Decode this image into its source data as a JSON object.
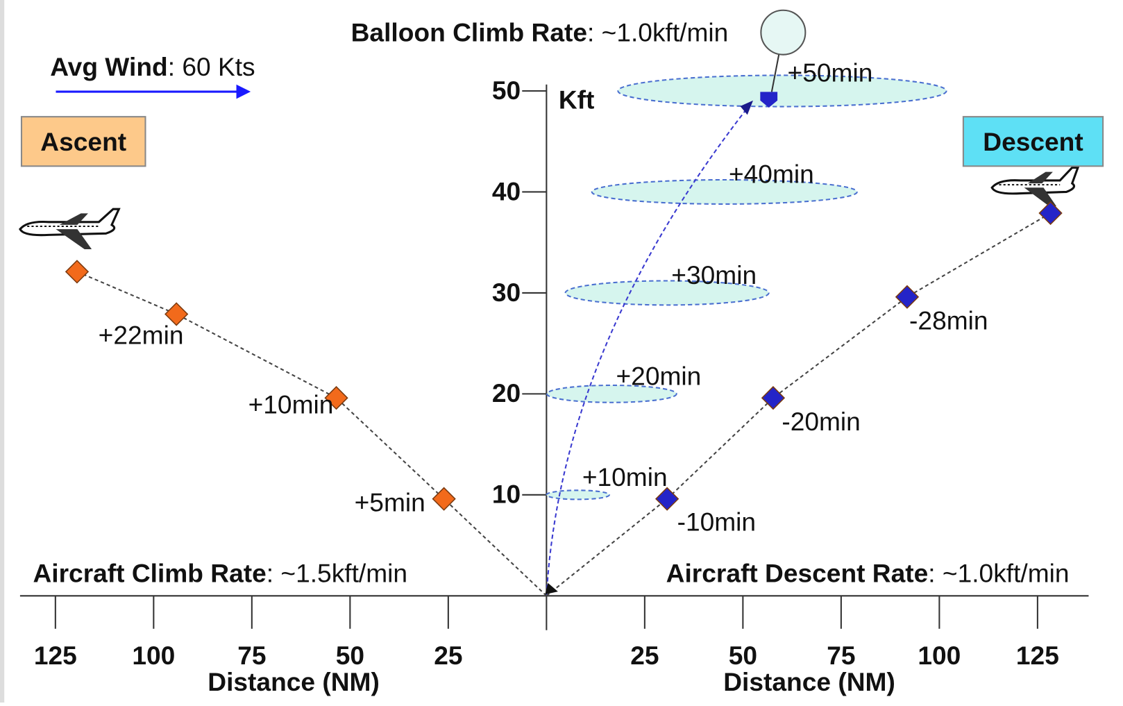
{
  "chart_data": {
    "type": "scatter",
    "title": {
      "bold": "Balloon Climb Rate",
      "text": ": ~1.0kft/min"
    },
    "wind": {
      "bold": "Avg Wind",
      "text": ": 60 Kts"
    },
    "climb_note": {
      "bold": "Aircraft Climb Rate",
      "text": ": ~1.5kft/min"
    },
    "descent_note": {
      "bold": "Aircraft Descent Rate",
      "text": ": ~1.0kft/min"
    },
    "y_label": "Kft",
    "x_labels": [
      "Distance (NM)",
      "Distance (NM)"
    ],
    "xlim": [
      -134,
      138
    ],
    "ylim": [
      0,
      55
    ],
    "xticks": [
      {
        "value": -125,
        "label": "125"
      },
      {
        "value": -100,
        "label": "100"
      },
      {
        "value": -75,
        "label": "75"
      },
      {
        "value": -50,
        "label": "50"
      },
      {
        "value": -25,
        "label": "25"
      },
      25,
      50,
      75,
      100,
      125
    ],
    "yticks": [
      10,
      20,
      30,
      40,
      50
    ],
    "series": [
      {
        "name": "Ascent",
        "color": "#f26a1b",
        "box_color": "#fdc98a",
        "x": [
          -119.5,
          -94.2,
          -53.5,
          -26.1
        ],
        "values": [
          32.1,
          27.9,
          19.6,
          9.6
        ],
        "value_labels": [
          null,
          "+22min",
          "+10min",
          "+5min"
        ]
      },
      {
        "name": "Descent",
        "color": "#2424c8",
        "box_color": "#5ee0f5",
        "x": [
          30.7,
          57.7,
          91.8,
          128.3
        ],
        "values": [
          9.6,
          19.6,
          29.6,
          37.9
        ],
        "value_labels": [
          "-10min",
          "-20min",
          "-28min",
          null
        ]
      }
    ],
    "balloon_regions": {
      "color": "#d6f5ee",
      "x": [
        8,
        16.6,
        30.7,
        45.3,
        60
      ],
      "values": [
        10,
        20,
        30,
        40,
        50
      ],
      "widths": [
        16,
        33,
        51.8,
        67.5,
        83.6
      ],
      "heights": [
        0.9,
        1.7,
        2.4,
        2.4,
        3.1
      ],
      "value_labels": [
        "+10min",
        "+20min",
        "+30min",
        "+40min",
        null
      ]
    },
    "balloon": {
      "x": 56.6,
      "value": 49.2,
      "value_label": "+50min"
    }
  }
}
